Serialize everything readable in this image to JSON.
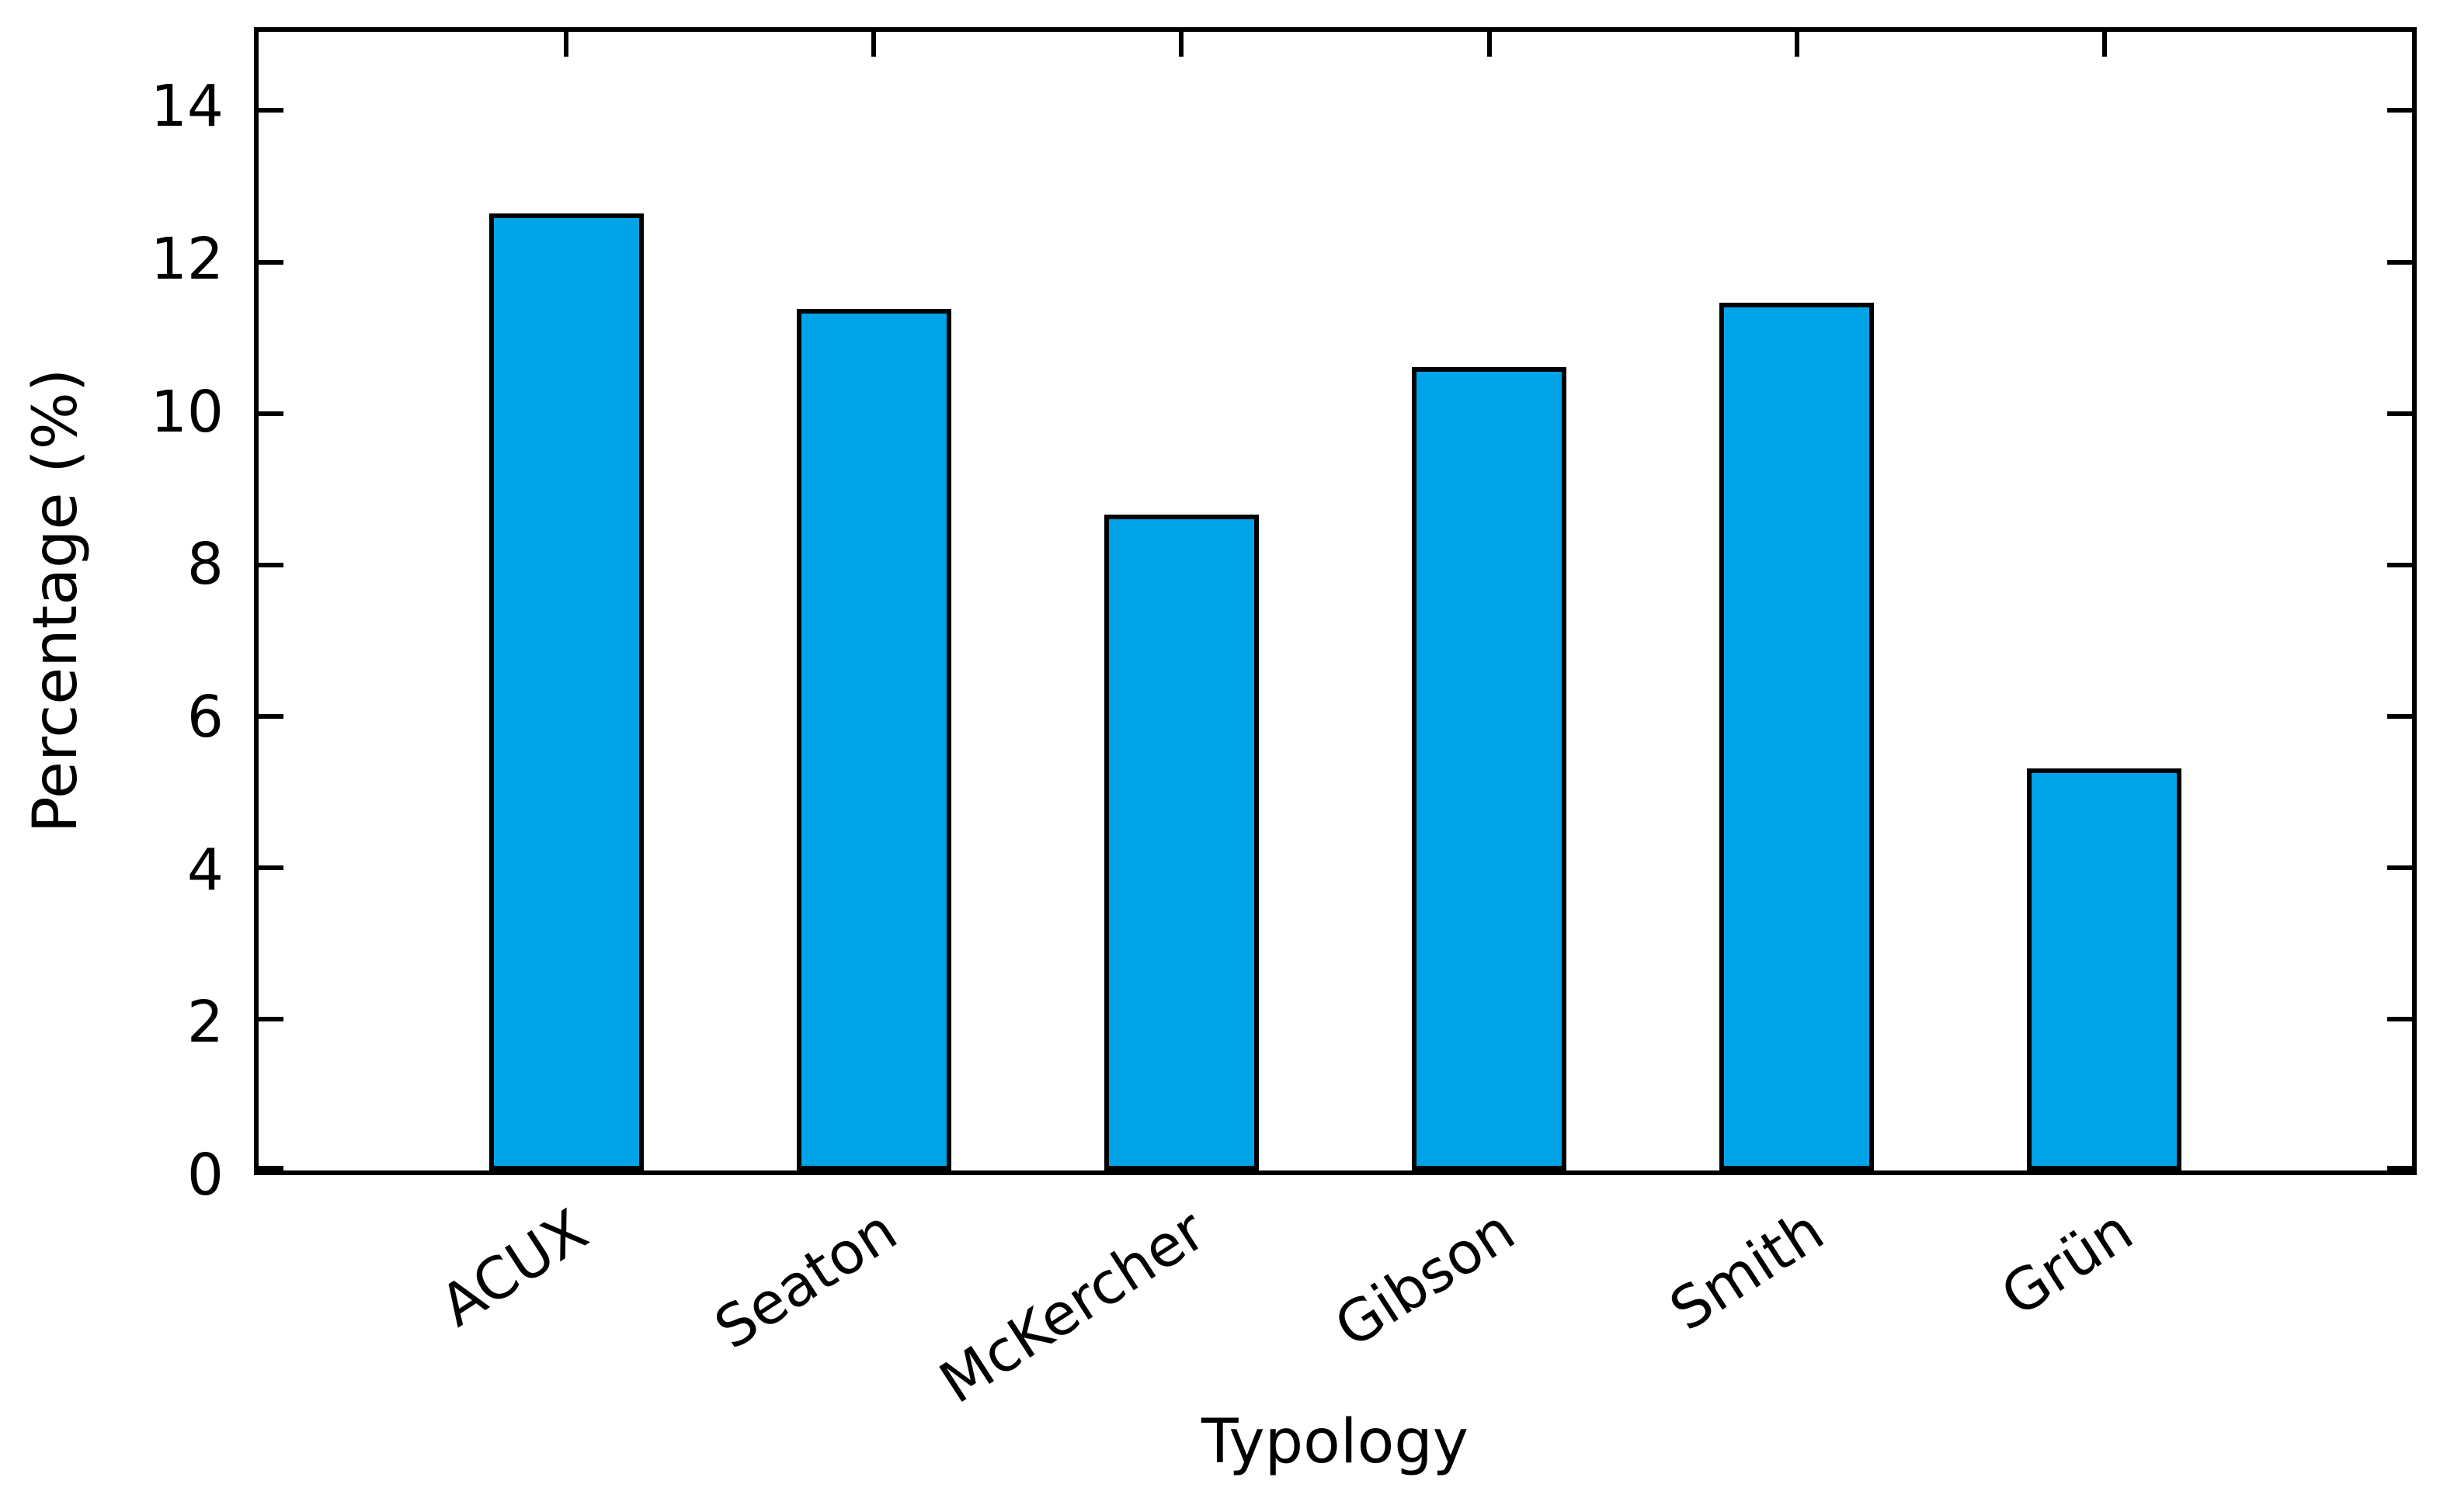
{
  "chart_data": {
    "type": "bar",
    "title": "",
    "xlabel": "Typology",
    "ylabel": "Percentage (%)",
    "categories": [
      "ACUX",
      "Seaton",
      "McKercher",
      "Gibson",
      "Smith",
      "Grün"
    ],
    "values": [
      12.64,
      11.38,
      8.66,
      10.61,
      11.46,
      5.31
    ],
    "ytick_labels": [
      "0",
      "2",
      "4",
      "6",
      "8",
      "10",
      "12",
      "14"
    ],
    "yticks": [
      0,
      2,
      4,
      6,
      8,
      10,
      12,
      14
    ],
    "ylim": [
      0,
      15.04
    ],
    "bar_color": "#00A3E8",
    "bar_edge_color": "#000000",
    "axis_color": "#000000",
    "background_color": "#ffffff",
    "grid": false,
    "legend": "none",
    "tick_direction": "in"
  }
}
